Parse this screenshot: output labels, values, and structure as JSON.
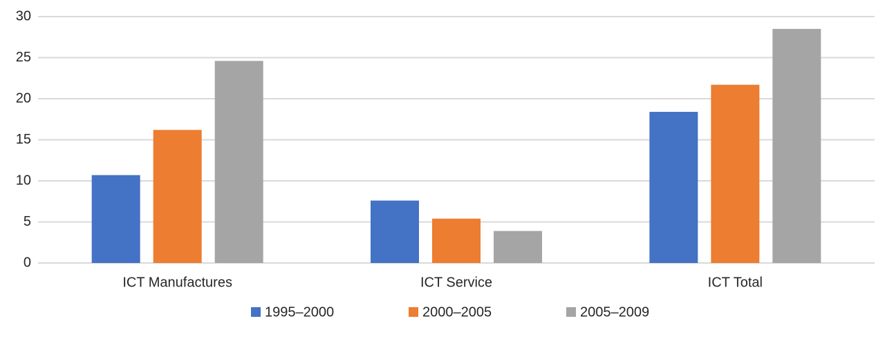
{
  "chart_data": {
    "type": "bar",
    "categories": [
      "ICT Manufactures",
      "ICT Service",
      "ICT Total"
    ],
    "series": [
      {
        "name": "1995–2000",
        "color": "#4472c4",
        "values": [
          10.7,
          7.6,
          18.4
        ]
      },
      {
        "name": "2000–2005",
        "color": "#ed7d31",
        "values": [
          16.2,
          5.4,
          21.7
        ]
      },
      {
        "name": "2005–2009",
        "color": "#a5a5a5",
        "values": [
          24.6,
          3.9,
          28.5
        ]
      }
    ],
    "ylim": [
      0,
      30
    ],
    "yticks": [
      0,
      5,
      10,
      15,
      20,
      25,
      30
    ],
    "grid": true,
    "legend": "bottom"
  }
}
